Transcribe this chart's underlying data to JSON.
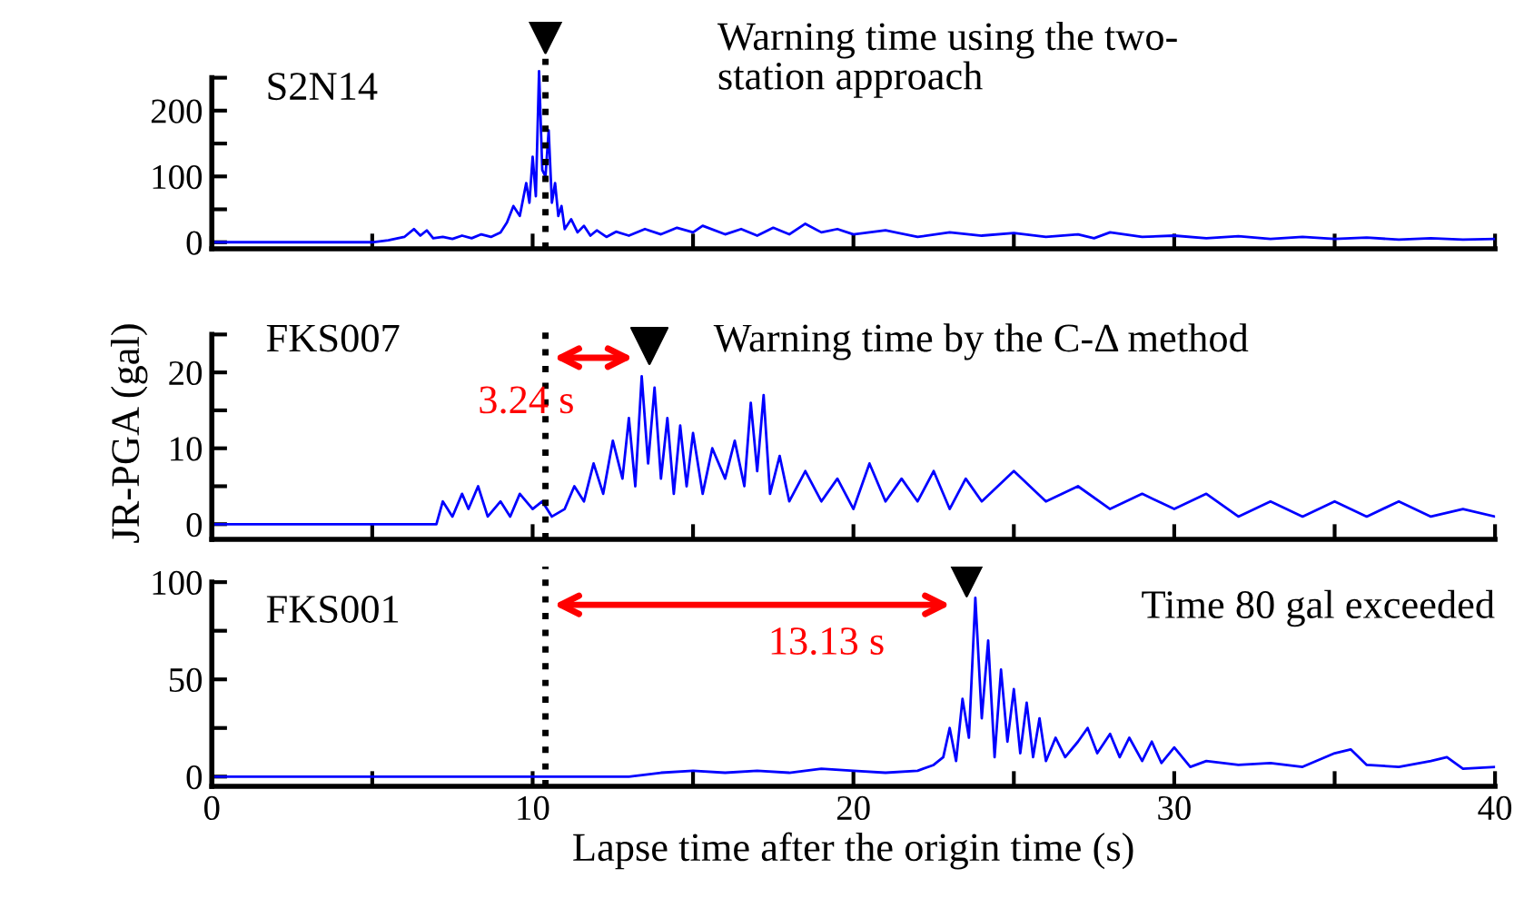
{
  "chart_data": [
    {
      "type": "line",
      "annotations": [
        "S2N14",
        "Warning time using the two-\nstation approach"
      ],
      "xlim": [
        0,
        40
      ],
      "xticks": [
        0,
        {
          "value": 5,
          "label": null
        },
        10,
        {
          "value": 15,
          "label": null
        },
        20,
        {
          "value": 25,
          "label": null
        },
        30,
        {
          "value": 35,
          "label": null
        },
        40
      ],
      "ylim": [
        -10,
        335
      ],
      "yticks": [
        0,
        {
          "value": 50,
          "label": null
        },
        100,
        {
          "value": 150,
          "label": null
        },
        200,
        {
          "value": 250,
          "label": null
        }
      ],
      "tick_labels": "y",
      "grid": false,
      "legend": false,
      "ref_lines": [
        {
          "axis": "x",
          "value": 10.4,
          "color": "#000000",
          "line_style": "dotted"
        }
      ],
      "series": [
        {
          "color": "#0000ff",
          "marker": "none",
          "x": [
            0,
            5,
            5.5,
            6,
            6.3,
            6.5,
            6.7,
            6.9,
            7.2,
            7.5,
            7.8,
            8.1,
            8.4,
            8.7,
            9.0,
            9.2,
            9.4,
            9.6,
            9.8,
            9.9,
            10.0,
            10.1,
            10.2,
            10.3,
            10.4,
            10.5,
            10.6,
            10.7,
            10.8,
            10.9,
            11.0,
            11.2,
            11.4,
            11.6,
            11.8,
            12.0,
            12.3,
            12.6,
            13,
            13.5,
            14,
            14.5,
            15,
            15.3,
            16,
            16.5,
            17,
            17.5,
            18,
            18.5,
            19,
            19.5,
            20,
            21,
            22,
            23,
            24,
            25,
            26,
            27,
            27.5,
            28,
            29,
            30,
            31,
            32,
            33,
            34,
            35,
            36,
            37,
            38,
            39,
            40
          ],
          "values": [
            0,
            0,
            3,
            8,
            20,
            10,
            18,
            6,
            8,
            5,
            10,
            6,
            12,
            8,
            15,
            30,
            55,
            40,
            90,
            60,
            130,
            70,
            260,
            110,
            100,
            170,
            60,
            90,
            40,
            55,
            20,
            35,
            15,
            25,
            10,
            18,
            8,
            16,
            10,
            20,
            12,
            22,
            15,
            25,
            12,
            20,
            10,
            22,
            12,
            28,
            15,
            20,
            12,
            18,
            8,
            15,
            10,
            14,
            8,
            12,
            6,
            15,
            8,
            10,
            6,
            9,
            5,
            8,
            5,
            7,
            4,
            6,
            4,
            5
          ]
        },
        {
          "type": "scatter",
          "color": "#000000",
          "marker": "triangle",
          "x": [
            10.4
          ],
          "values": [
            315
          ]
        }
      ]
    },
    {
      "type": "line",
      "ylabel": "JR-PGA (gal)",
      "annotations": [
        "FKS007",
        "Warning time by the C-Δ method",
        "3.24 s"
      ],
      "xlim": [
        0,
        40
      ],
      "xticks": [
        0,
        {
          "value": 5,
          "label": null
        },
        10,
        {
          "value": 15,
          "label": null
        },
        20,
        {
          "value": 25,
          "label": null
        },
        30,
        {
          "value": 35,
          "label": null
        },
        40
      ],
      "ylim": [
        -2,
        26
      ],
      "yticks": [
        0,
        {
          "value": 5,
          "label": null
        },
        10,
        {
          "value": 15,
          "label": null
        },
        20,
        {
          "value": 25,
          "label": null
        }
      ],
      "tick_labels": "y",
      "grid": false,
      "legend": false,
      "ref_lines": [
        {
          "axis": "x",
          "value": 10.4,
          "color": "#000000",
          "line_style": "dotted"
        }
      ],
      "series": [
        {
          "color": "#0000ff",
          "marker": "none",
          "x": [
            0,
            7,
            7.2,
            7.5,
            7.8,
            8,
            8.3,
            8.6,
            9,
            9.3,
            9.6,
            10,
            10.3,
            10.6,
            11,
            11.3,
            11.6,
            11.9,
            12.2,
            12.5,
            12.8,
            13.0,
            13.2,
            13.4,
            13.6,
            13.8,
            14.0,
            14.2,
            14.4,
            14.6,
            14.8,
            15.0,
            15.3,
            15.6,
            16,
            16.3,
            16.6,
            16.8,
            17.0,
            17.2,
            17.4,
            17.7,
            18,
            18.5,
            19,
            19.5,
            20,
            20.5,
            21,
            21.5,
            22,
            22.5,
            23,
            23.5,
            24,
            25,
            26,
            27,
            28,
            29,
            30,
            31,
            32,
            33,
            34,
            35,
            36,
            37,
            38,
            39,
            40
          ],
          "values": [
            0,
            0,
            3,
            1,
            4,
            2,
            5,
            1,
            3,
            1,
            4,
            2,
            3,
            1,
            2,
            5,
            3,
            8,
            4,
            11,
            6,
            14,
            5,
            19.5,
            8,
            18,
            6,
            14,
            4,
            13,
            5,
            12,
            4,
            10,
            6,
            11,
            5,
            16,
            7,
            17,
            4,
            9,
            3,
            7,
            3,
            6,
            2,
            8,
            3,
            6,
            3,
            7,
            2,
            6,
            3,
            7,
            3,
            5,
            2,
            4,
            2,
            4,
            1,
            3,
            1,
            3,
            1,
            3,
            1,
            2,
            1
          ]
        },
        {
          "type": "scatter",
          "color": "#000000",
          "marker": "triangle",
          "x": [
            13.64
          ],
          "values": [
            23.5
          ]
        }
      ]
    },
    {
      "type": "line",
      "xlabel": "Lapse time after the origin time (s)",
      "annotations": [
        "FKS001",
        "Time 80 gal exceeded",
        "13.13 s"
      ],
      "xlim": [
        0,
        40
      ],
      "xticks": [
        0,
        {
          "value": 5,
          "label": null
        },
        10,
        {
          "value": 15,
          "label": null
        },
        20,
        {
          "value": 25,
          "label": null
        },
        30,
        {
          "value": 35,
          "label": null
        },
        40
      ],
      "ylim": [
        -5,
        108
      ],
      "yticks": [
        0,
        {
          "value": 25,
          "label": null
        },
        50,
        {
          "value": 75,
          "label": null
        },
        100
      ],
      "grid": false,
      "legend": false,
      "ref_lines": [
        {
          "axis": "x",
          "value": 10.4,
          "color": "#000000",
          "line_style": "dotted"
        }
      ],
      "series": [
        {
          "color": "#0000ff",
          "marker": "none",
          "x": [
            0,
            13,
            14,
            15,
            16,
            17,
            18,
            19,
            20,
            21,
            22,
            22.5,
            22.8,
            23.0,
            23.2,
            23.4,
            23.6,
            23.8,
            24.0,
            24.2,
            24.4,
            24.6,
            24.8,
            25.0,
            25.2,
            25.4,
            25.6,
            25.8,
            26.0,
            26.3,
            26.6,
            27,
            27.3,
            27.6,
            28,
            28.3,
            28.6,
            29,
            29.3,
            29.6,
            30,
            30.5,
            31,
            32,
            33,
            34,
            35,
            35.5,
            36,
            37,
            38,
            38.5,
            39,
            40
          ],
          "values": [
            0,
            0,
            2,
            3,
            2,
            3,
            2,
            4,
            3,
            2,
            3,
            6,
            10,
            25,
            8,
            40,
            20,
            92,
            30,
            70,
            10,
            55,
            18,
            45,
            12,
            38,
            10,
            30,
            8,
            20,
            10,
            18,
            25,
            12,
            22,
            10,
            20,
            8,
            18,
            7,
            15,
            5,
            8,
            6,
            7,
            5,
            12,
            14,
            6,
            5,
            8,
            10,
            4,
            5
          ]
        },
        {
          "type": "scatter",
          "color": "#000000",
          "marker": "triangle",
          "x": [
            23.53
          ],
          "values": [
            102
          ]
        }
      ]
    }
  ]
}
